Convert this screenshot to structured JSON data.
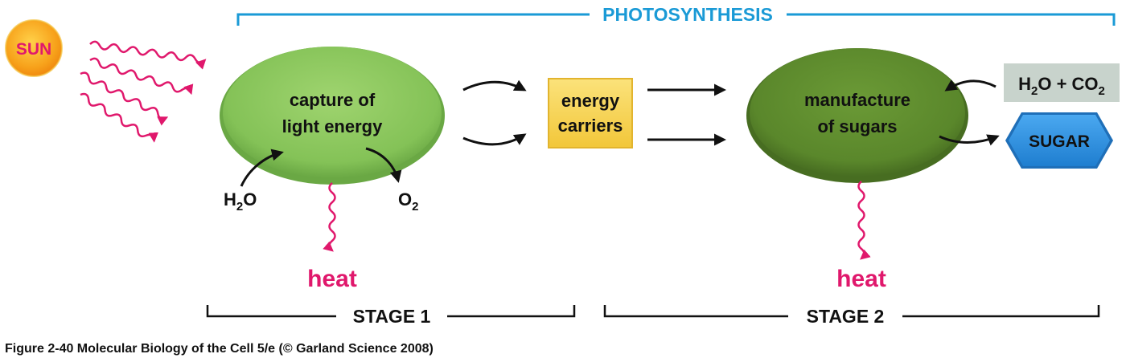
{
  "title": "PHOTOSYNTHESIS",
  "sun": {
    "label": "SUN"
  },
  "stage1": {
    "line1": "capture of",
    "line2": "light energy",
    "input": {
      "main": "H",
      "sub": "2",
      "tail": "O"
    },
    "output": {
      "main": "O",
      "sub": "2"
    },
    "heat": "heat",
    "label": "STAGE 1"
  },
  "carriers": {
    "line1": "energy",
    "line2": "carriers"
  },
  "stage2": {
    "line1": "manufacture",
    "line2": "of sugars",
    "input": {
      "h": "H",
      "sub1": "2",
      "o": "O + CO",
      "sub2": "2"
    },
    "output": "SUGAR",
    "heat": "heat",
    "label": "STAGE 2"
  },
  "caption": "Figure 2-40  Molecular Biology of the Cell 5/e (© Garland Science 2008)",
  "colors": {
    "title": "#1a9ad6",
    "heat": "#e0186c",
    "stage1_oval": "#8ec95f",
    "stage2_oval": "#5d8a2d",
    "carriers_box": "#f6d54a",
    "sugar": "#2f8fe0",
    "gas_box": "#c8d3cc",
    "sun": "#f7a11a"
  },
  "icons": [
    "sun-icon",
    "light-wave-icon",
    "heat-wave-icon",
    "sugar-hexagon-icon"
  ]
}
